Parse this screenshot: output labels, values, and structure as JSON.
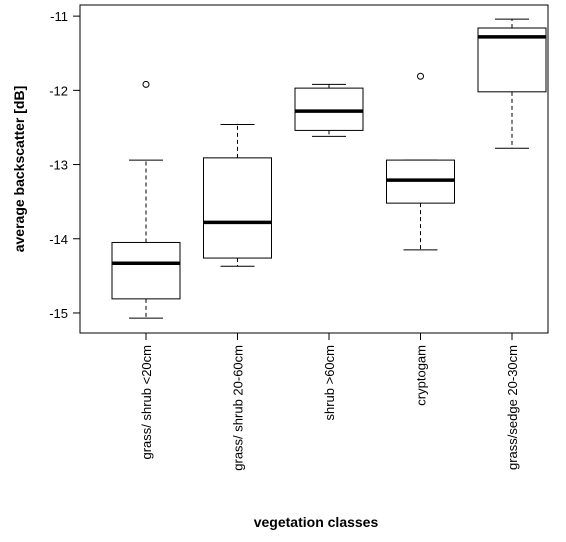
{
  "chart_data": {
    "type": "boxplot",
    "x_label": "vegetation classes",
    "y_label": "average backscatter [dB]",
    "categories": [
      "grass/ shrub <20cm",
      "grass/ shrub 20-60cm",
      "shrub >60cm",
      "cryptogam",
      "grass/sedge 20-30cm"
    ],
    "min": [
      -15.07,
      -14.37,
      -12.62,
      -14.15,
      -12.78
    ],
    "q1": [
      -14.81,
      -14.26,
      -12.54,
      -13.52,
      -12.02
    ],
    "median": [
      -14.33,
      -13.78,
      -12.28,
      -13.21,
      -11.28
    ],
    "q3": [
      -14.05,
      -12.91,
      -11.97,
      -12.94,
      -11.16
    ],
    "max": [
      -12.94,
      -12.46,
      -11.92,
      -12.94,
      -11.04
    ],
    "outliers": [
      [
        -11.92
      ],
      [],
      [],
      [
        -11.81
      ],
      []
    ],
    "ylim": [
      -15.27,
      -10.85
    ],
    "yticks": [
      -15,
      -14,
      -13,
      -12,
      -11
    ]
  }
}
